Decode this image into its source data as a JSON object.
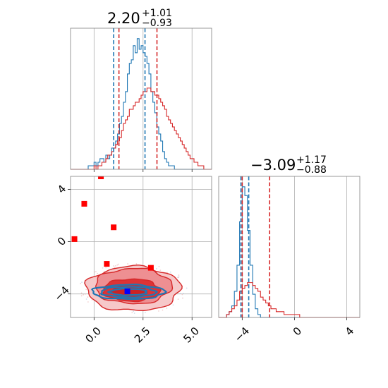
{
  "chart_data": {
    "type": "corner",
    "parameters": [
      {
        "title": {
          "value": "2.20",
          "plus": "+1.01",
          "minus": "−0.93"
        },
        "range": [
          -1.2,
          6.0
        ],
        "ticks": [
          {
            "value": 0,
            "label": "0.0"
          },
          {
            "value": 2.5,
            "label": "2.5"
          },
          {
            "value": 5,
            "label": "5.0"
          }
        ]
      },
      {
        "title": {
          "value": "−3.09",
          "plus": "+1.17",
          "minus": "−0.88"
        },
        "range": [
          -5.8,
          5.0
        ],
        "ticks": [
          {
            "value": -4,
            "label": "−4"
          },
          {
            "value": 0,
            "label": "0"
          },
          {
            "value": 4,
            "label": "4"
          }
        ]
      }
    ],
    "marginals": [
      {
        "parameter": 0,
        "x_start": -1.2,
        "bin_width": 0.1,
        "series": [
          {
            "color": "#1f77b4",
            "counts": [
              0,
              0,
              0,
              0,
              0,
              0,
              0,
              0,
              0,
              1,
              1,
              1,
              2,
              1,
              2,
              3,
              3,
              2,
              4,
              3,
              4,
              6,
              6,
              8,
              10,
              13,
              15,
              19,
              22,
              27,
              30,
              31,
              35,
              33,
              37,
              34,
              35,
              33,
              32,
              30,
              27,
              22,
              19,
              16,
              12,
              10,
              8,
              5,
              3,
              2,
              1,
              1,
              1,
              0,
              0,
              0,
              0,
              0,
              0,
              0,
              0,
              0,
              0,
              0,
              0,
              0,
              0,
              0,
              0,
              0,
              0,
              0
            ],
            "quantiles": [
              1.0,
              2.6
            ]
          },
          {
            "color": "#d62728",
            "counts": [
              0,
              0,
              0,
              0,
              0,
              0,
              0,
              0,
              0,
              0,
              0,
              0,
              1,
              0,
              1,
              1,
              2,
              2,
              3,
              4,
              4,
              5,
              6,
              7,
              8,
              9,
              11,
              13,
              14,
              15,
              17,
              17,
              18,
              19,
              19,
              20,
              21,
              22,
              22,
              23,
              23,
              22,
              22,
              21,
              21,
              20,
              19,
              18,
              17,
              15,
              14,
              13,
              12,
              11,
              10,
              9,
              8,
              7,
              6,
              5,
              4,
              3,
              3,
              2,
              2,
              1,
              1,
              1,
              0,
              0,
              0,
              0
            ],
            "quantiles": [
              1.27,
              3.21
            ]
          }
        ]
      },
      {
        "parameter": 1,
        "x_start": -5.8,
        "bin_width": 0.2,
        "series": [
          {
            "color": "#1f77b4",
            "counts": [
              0,
              0,
              0,
              1,
              2,
              4,
              9,
              18,
              33,
              45,
              42,
              30,
              18,
              8,
              3,
              1,
              0,
              0,
              0,
              0,
              0,
              0,
              0,
              0,
              0,
              0,
              0,
              0,
              0,
              0,
              0,
              0,
              0,
              0,
              0,
              0,
              0,
              0,
              0,
              0,
              0,
              0,
              0,
              0,
              0,
              0,
              0,
              0,
              0,
              0,
              0,
              0,
              0,
              0
            ],
            "quantiles": [
              -4.1,
              -3.5
            ]
          },
          {
            "color": "#d62728",
            "counts": [
              0,
              0,
              0,
              1,
              2,
              3,
              4,
              6,
              9,
              10,
              11,
              12,
              12,
              11,
              10,
              9,
              7,
              6,
              5,
              4,
              3,
              3,
              2,
              2,
              2,
              1,
              1,
              1,
              1,
              1,
              1,
              0,
              0,
              0,
              0,
              0,
              0,
              0,
              0,
              0,
              0,
              0,
              0,
              0,
              0,
              0,
              0,
              0,
              0,
              0,
              0,
              0,
              0,
              0
            ],
            "quantiles": [
              -4.0,
              -1.9
            ]
          }
        ]
      }
    ],
    "joint": {
      "x_param": 0,
      "y_param": 1,
      "red_contours": [
        {
          "center": [
            2.0,
            -3.6
          ],
          "radii": [
            2.4,
            1.7
          ],
          "fill": "#f6c8c9"
        },
        {
          "center": [
            2.0,
            -3.4
          ],
          "radii": [
            1.95,
            1.35
          ],
          "fill": "#ee8f92"
        },
        {
          "center": [
            1.9,
            -3.7
          ],
          "radii": [
            1.45,
            0.85
          ],
          "fill": "#dc3336"
        },
        {
          "center": [
            1.8,
            -3.8
          ],
          "radii": [
            0.9,
            0.5
          ],
          "fill": "#cc2224"
        }
      ],
      "blue_contours": [
        {
          "center": [
            1.75,
            -3.85
          ],
          "radii": [
            1.85,
            0.55
          ]
        },
        {
          "center": [
            1.75,
            -3.85
          ],
          "radii": [
            1.4,
            0.4
          ]
        },
        {
          "center": [
            1.75,
            -3.85
          ],
          "radii": [
            0.95,
            0.25
          ]
        }
      ],
      "red_markers": [
        {
          "x": -1.0,
          "y": 0.2
        },
        {
          "x": -0.5,
          "y": 2.9
        },
        {
          "x": 0.35,
          "y": 5.0
        },
        {
          "x": 1.0,
          "y": 1.1
        },
        {
          "x": 0.65,
          "y": -1.7
        },
        {
          "x": 2.9,
          "y": -2.0
        }
      ],
      "blue_markers": [
        {
          "x": 1.7,
          "y": -3.8
        }
      ]
    },
    "grid": true
  }
}
